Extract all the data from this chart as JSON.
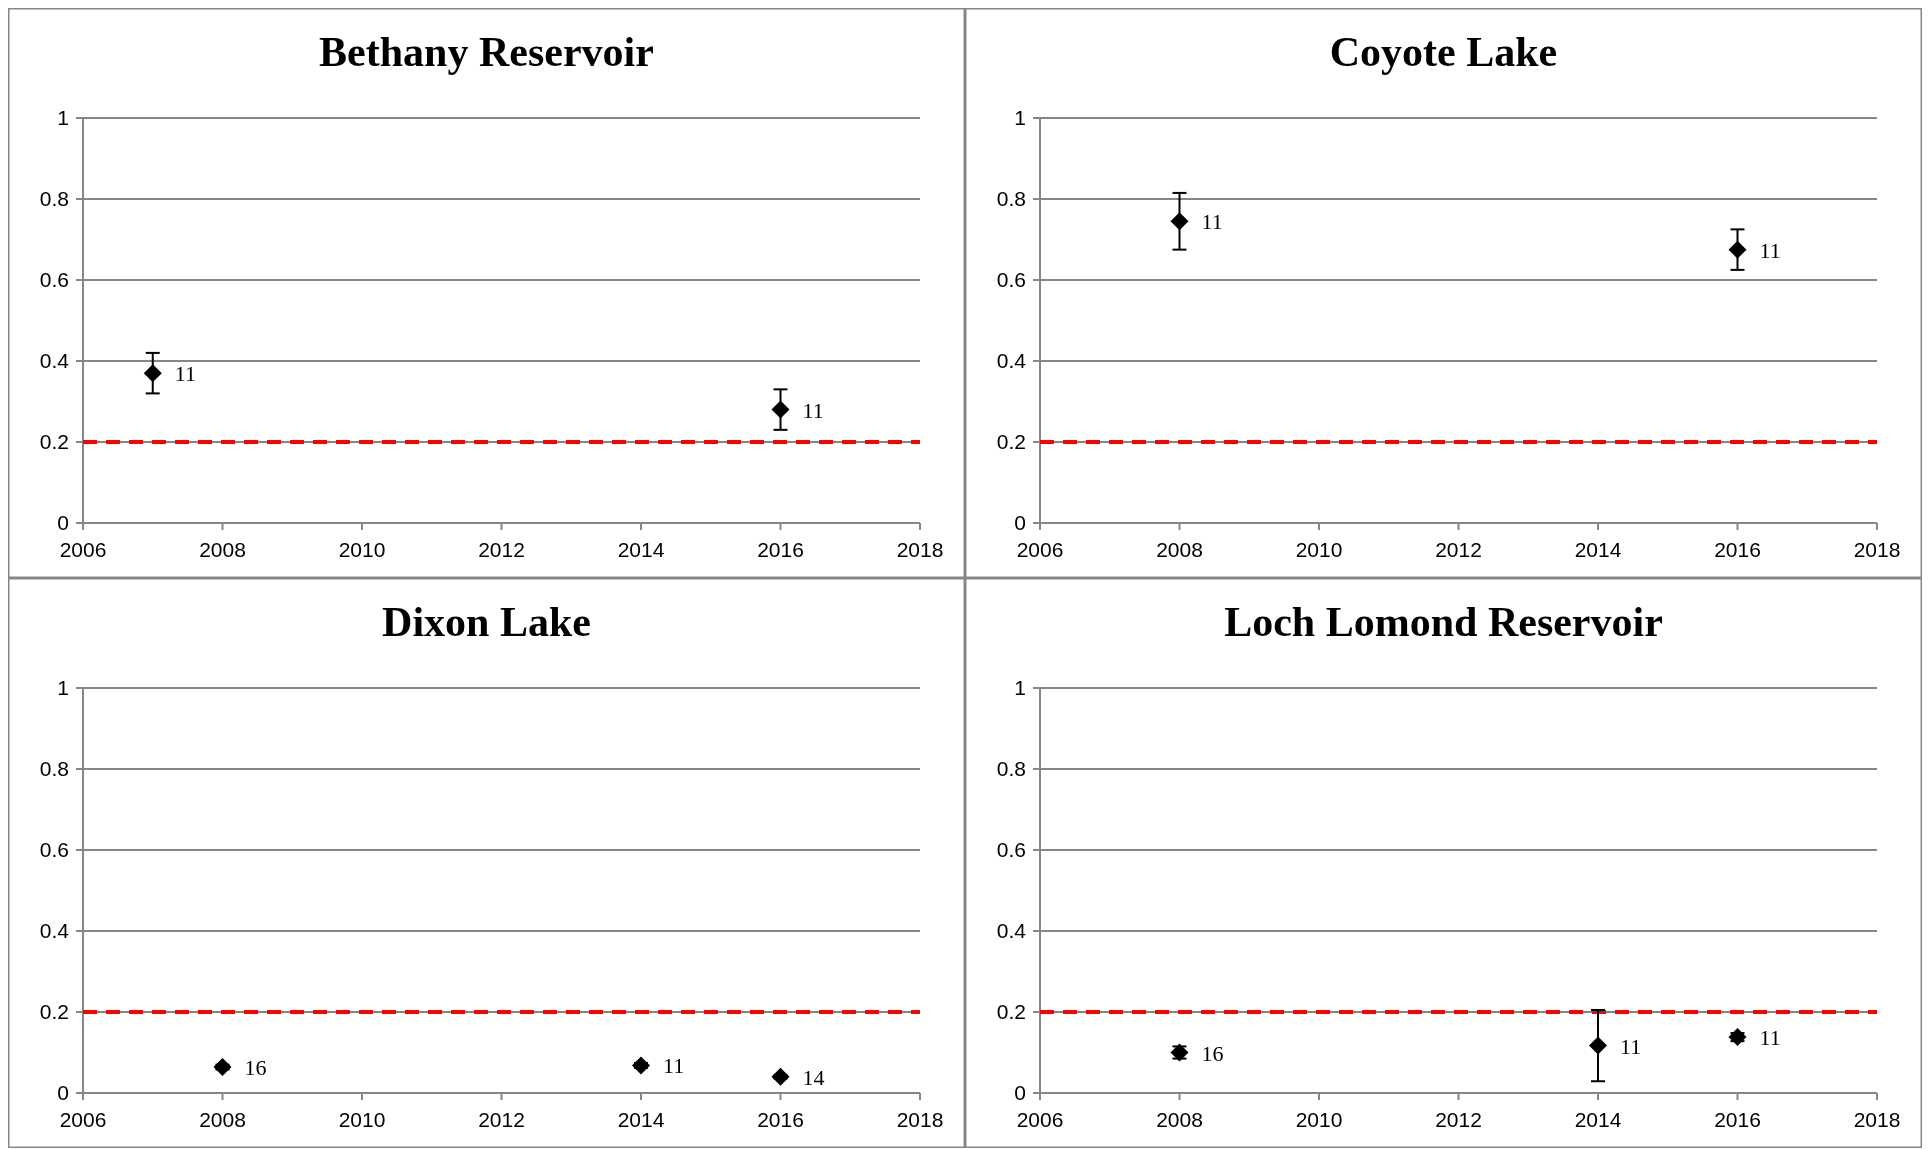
{
  "chart_data": [
    {
      "type": "scatter",
      "title": "Bethany Reservoir",
      "x": [
        2007,
        2016
      ],
      "values": [
        0.37,
        0.28
      ],
      "errors": [
        0.05,
        0.05
      ],
      "color": "#000000",
      "marker": "diamond",
      "xlim": [
        2006,
        2018
      ],
      "xticks": [
        2006,
        2008,
        2010,
        2012,
        2014,
        2016,
        2018
      ],
      "ylim": [
        0,
        1
      ],
      "yticks": [
        0,
        0.2,
        0.4,
        0.6,
        0.8,
        1
      ],
      "grid": "y",
      "ref_lines": [
        {
          "axis": "y",
          "value": 0.2,
          "color": "#ff0000",
          "line_style": "dashed"
        }
      ],
      "annotations": [
        {
          "text": "11",
          "x": 2007,
          "y": 0.37
        },
        {
          "text": "11",
          "x": 2016,
          "y": 0.28
        }
      ]
    },
    {
      "type": "scatter",
      "title": "Coyote Lake",
      "x": [
        2008,
        2016
      ],
      "values": [
        0.745,
        0.675
      ],
      "errors": [
        0.07,
        0.05
      ],
      "color": "#000000",
      "marker": "diamond",
      "xlim": [
        2006,
        2018
      ],
      "xticks": [
        2006,
        2008,
        2010,
        2012,
        2014,
        2016,
        2018
      ],
      "ylim": [
        0,
        1
      ],
      "yticks": [
        0,
        0.2,
        0.4,
        0.6,
        0.8,
        1
      ],
      "grid": "y",
      "ref_lines": [
        {
          "axis": "y",
          "value": 0.2,
          "color": "#ff0000",
          "line_style": "dashed"
        }
      ],
      "annotations": [
        {
          "text": "11",
          "x": 2008,
          "y": 0.745
        },
        {
          "text": "11",
          "x": 2016,
          "y": 0.675
        }
      ]
    },
    {
      "type": "scatter",
      "title": "Dixon Lake",
      "x": [
        2008,
        2014,
        2016
      ],
      "values": [
        0.064,
        0.068,
        0.04
      ],
      "errors": [
        0.006,
        0.006,
        0.004
      ],
      "color": "#000000",
      "marker": "diamond",
      "xlim": [
        2006,
        2018
      ],
      "xticks": [
        2006,
        2008,
        2010,
        2012,
        2014,
        2016,
        2018
      ],
      "ylim": [
        0,
        1
      ],
      "yticks": [
        0,
        0.2,
        0.4,
        0.6,
        0.8,
        1
      ],
      "grid": "y",
      "ref_lines": [
        {
          "axis": "y",
          "value": 0.2,
          "color": "#ff0000",
          "line_style": "dashed"
        }
      ],
      "annotations": [
        {
          "text": "16",
          "x": 2008,
          "y": 0.064
        },
        {
          "text": "11",
          "x": 2014,
          "y": 0.068
        },
        {
          "text": "14",
          "x": 2016,
          "y": 0.04
        }
      ]
    },
    {
      "type": "scatter",
      "title": "Loch Lomond Reservoir",
      "x": [
        2008,
        2014,
        2016
      ],
      "values": [
        0.1,
        0.117,
        0.138
      ],
      "errors": [
        0.015,
        0.088,
        0.01
      ],
      "color": "#000000",
      "marker": "diamond",
      "xlim": [
        2006,
        2018
      ],
      "xticks": [
        2006,
        2008,
        2010,
        2012,
        2014,
        2016,
        2018
      ],
      "ylim": [
        0,
        1
      ],
      "yticks": [
        0,
        0.2,
        0.4,
        0.6,
        0.8,
        1
      ],
      "grid": "y",
      "ref_lines": [
        {
          "axis": "y",
          "value": 0.2,
          "color": "#ff0000",
          "line_style": "dashed"
        }
      ],
      "annotations": [
        {
          "text": "16",
          "x": 2008,
          "y": 0.1
        },
        {
          "text": "11",
          "x": 2014,
          "y": 0.117
        },
        {
          "text": "11",
          "x": 2016,
          "y": 0.138
        }
      ]
    }
  ]
}
